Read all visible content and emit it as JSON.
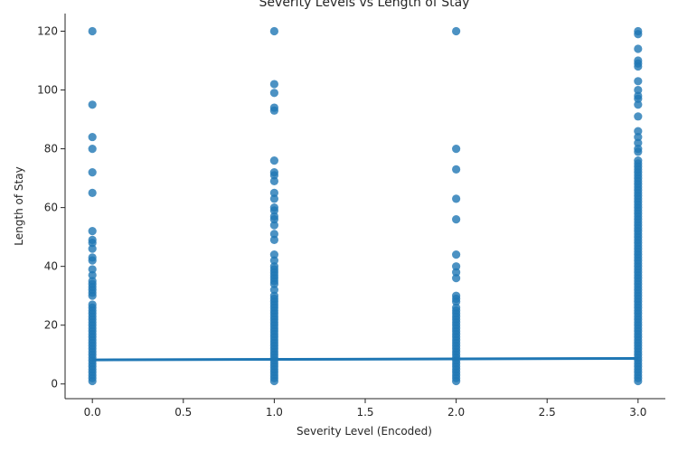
{
  "chart_data": {
    "type": "scatter",
    "title": "Severity Levels vs Length of Stay",
    "xlabel": "Severity Level (Encoded)",
    "ylabel": "Length of Stay",
    "xlim": [
      -0.15,
      3.15
    ],
    "ylim": [
      -5,
      126
    ],
    "xticks": [
      "0.0",
      "0.5",
      "1.0",
      "1.5",
      "2.0",
      "2.5",
      "3.0"
    ],
    "yticks": [
      "0",
      "20",
      "40",
      "60",
      "80",
      "100",
      "120"
    ],
    "grid": false,
    "point_color": "#1f77b4",
    "regression_line": {
      "x": [
        0,
        3
      ],
      "y": [
        8.2,
        8.7
      ],
      "color": "#1f77b4"
    },
    "series": [
      {
        "x": 0,
        "y": [
          1,
          2,
          3,
          4,
          5,
          6,
          7,
          8,
          9,
          10,
          11,
          12,
          13,
          14,
          15,
          16,
          17,
          18,
          19,
          20,
          21,
          22,
          23,
          24,
          25,
          26,
          27,
          30,
          31,
          32,
          33,
          34,
          35,
          37,
          39,
          42,
          43,
          46,
          48,
          49,
          52,
          65,
          72,
          80,
          84,
          95,
          120
        ]
      },
      {
        "x": 1,
        "y": [
          1,
          2,
          3,
          4,
          5,
          6,
          7,
          8,
          9,
          10,
          11,
          12,
          13,
          14,
          15,
          16,
          17,
          18,
          19,
          20,
          21,
          22,
          23,
          24,
          25,
          26,
          27,
          28,
          29,
          30,
          32,
          34,
          35,
          36,
          37,
          38,
          39,
          40,
          42,
          44,
          49,
          51,
          54,
          56,
          57,
          59,
          60,
          63,
          65,
          69,
          71,
          72,
          76,
          93,
          94,
          99,
          102,
          120
        ]
      },
      {
        "x": 2,
        "y": [
          1,
          2,
          3,
          4,
          5,
          6,
          7,
          8,
          9,
          10,
          11,
          12,
          13,
          14,
          15,
          16,
          17,
          18,
          19,
          20,
          21,
          22,
          23,
          24,
          25,
          26,
          28,
          29,
          30,
          36,
          38,
          40,
          44,
          56,
          63,
          73,
          80,
          120
        ]
      },
      {
        "x": 3,
        "y": [
          1,
          2,
          3,
          4,
          5,
          6,
          7,
          8,
          9,
          10,
          11,
          12,
          13,
          14,
          15,
          16,
          17,
          18,
          19,
          20,
          21,
          22,
          23,
          24,
          25,
          26,
          27,
          28,
          29,
          30,
          31,
          32,
          33,
          34,
          35,
          36,
          37,
          38,
          39,
          40,
          41,
          42,
          43,
          44,
          45,
          46,
          47,
          48,
          49,
          50,
          51,
          52,
          53,
          54,
          55,
          56,
          57,
          58,
          59,
          60,
          61,
          62,
          63,
          64,
          65,
          66,
          67,
          68,
          69,
          70,
          71,
          72,
          73,
          74,
          75,
          76,
          79,
          80,
          82,
          84,
          86,
          91,
          95,
          97,
          98,
          100,
          103,
          108,
          109,
          110,
          114,
          119,
          120
        ]
      }
    ]
  }
}
